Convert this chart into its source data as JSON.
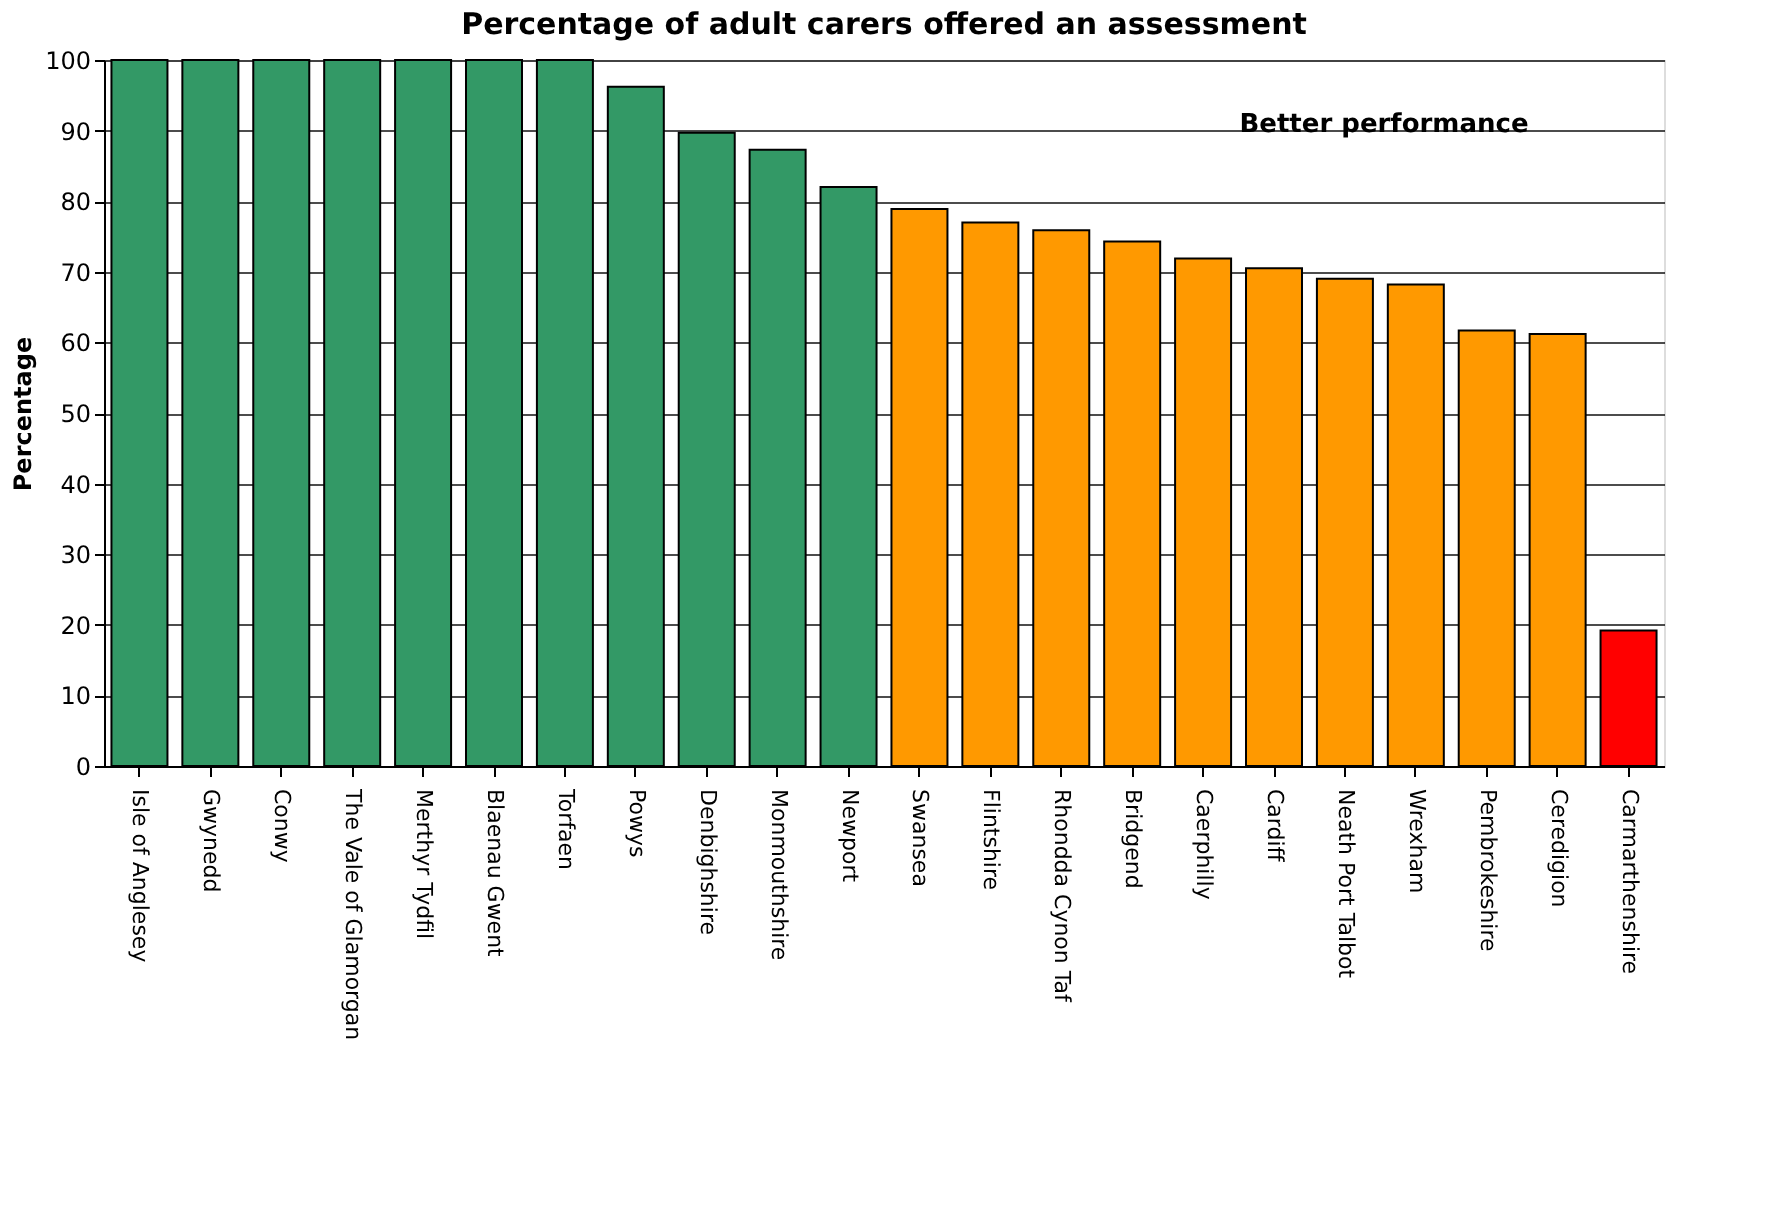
{
  "chart_data": {
    "type": "bar",
    "title": "Percentage of adult carers offered an assessment",
    "ylabel": "Percentage",
    "categories": [
      "Isle of Anglesey",
      "Gwynedd",
      "Conwy",
      "The Vale of Glamorgan",
      "Merthyr Tydfil",
      "Blaenau Gwent",
      "Torfaen",
      "Powys",
      "Denbighshire",
      "Monmouthshire",
      "Newport",
      "Swansea",
      "Flintshire",
      "Rhondda Cynon Taf",
      "Bridgend",
      "Caerphilly",
      "Cardiff",
      "Neath Port Talbot",
      "Wrexham",
      "Pembrokeshire",
      "Ceredigion",
      "Carmarthenshire"
    ],
    "values": [
      100,
      100,
      100,
      100,
      100,
      100,
      100,
      96.2,
      89.7,
      87.3,
      82,
      78.9,
      77,
      75.9,
      74.3,
      71.9,
      70.5,
      69,
      68.2,
      61.7,
      61.2,
      19.2
    ],
    "colors": [
      "#339966",
      "#339966",
      "#339966",
      "#339966",
      "#339966",
      "#339966",
      "#339966",
      "#339966",
      "#339966",
      "#339966",
      "#339966",
      "#ff9900",
      "#ff9900",
      "#ff9900",
      "#ff9900",
      "#ff9900",
      "#ff9900",
      "#ff9900",
      "#ff9900",
      "#ff9900",
      "#ff9900",
      "#ff0000"
    ],
    "ylim": [
      0,
      100
    ],
    "yticks": [
      0,
      10,
      20,
      30,
      40,
      50,
      60,
      70,
      80,
      90,
      100
    ],
    "grid": "y",
    "annotations": [
      "Better performance"
    ]
  }
}
